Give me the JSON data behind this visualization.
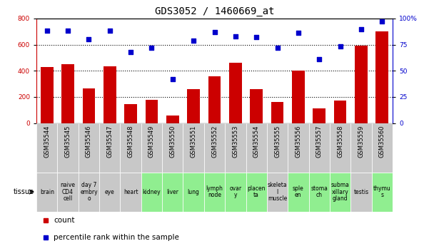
{
  "title": "GDS3052 / 1460669_at",
  "gsm_labels": [
    "GSM35544",
    "GSM35545",
    "GSM35546",
    "GSM35547",
    "GSM35548",
    "GSM35549",
    "GSM35550",
    "GSM35551",
    "GSM35552",
    "GSM35553",
    "GSM35554",
    "GSM35555",
    "GSM35556",
    "GSM35557",
    "GSM35558",
    "GSM35559",
    "GSM35560"
  ],
  "tissue_labels": [
    "brain",
    "naive\nCD4\ncell",
    "day 7\nembry\no",
    "eye",
    "heart",
    "kidney",
    "liver",
    "lung",
    "lymph\nnode",
    "ovar\ny",
    "placen\nta",
    "skeleta\nl\nmuscle",
    "sple\nen",
    "stoma\nch",
    "subma\nxillary\ngland",
    "testis",
    "thymu\ns"
  ],
  "tissue_colors": [
    "#c8c8c8",
    "#c8c8c8",
    "#c8c8c8",
    "#c8c8c8",
    "#c8c8c8",
    "#90ee90",
    "#90ee90",
    "#90ee90",
    "#90ee90",
    "#90ee90",
    "#90ee90",
    "#c8c8c8",
    "#90ee90",
    "#90ee90",
    "#90ee90",
    "#c8c8c8",
    "#90ee90"
  ],
  "gsm_bg_color": "#c8c8c8",
  "counts": [
    430,
    450,
    265,
    435,
    145,
    175,
    55,
    260,
    355,
    460,
    260,
    160,
    400,
    110,
    170,
    590,
    700
  ],
  "percentiles": [
    88,
    88,
    80,
    88,
    68,
    72,
    42,
    79,
    87,
    83,
    82,
    72,
    86,
    61,
    73,
    90,
    97
  ],
  "left_ylim": [
    0,
    800
  ],
  "right_ylim": [
    0,
    100
  ],
  "left_yticks": [
    0,
    200,
    400,
    600,
    800
  ],
  "right_yticks": [
    0,
    25,
    50,
    75,
    100
  ],
  "right_yticklabels": [
    "0",
    "25",
    "50",
    "75",
    "100%"
  ],
  "bar_color": "#cc0000",
  "dot_color": "#0000cc",
  "bar_width": 0.6,
  "title_fontsize": 10,
  "tick_fontsize": 6.5,
  "tissue_fontsize": 5.5,
  "gsm_fontsize": 6,
  "legend_fontsize": 7.5,
  "left_axis_color": "#cc0000",
  "right_axis_color": "#0000cc",
  "gridline_color": "#000000",
  "gridline_values": [
    200,
    400,
    600
  ]
}
